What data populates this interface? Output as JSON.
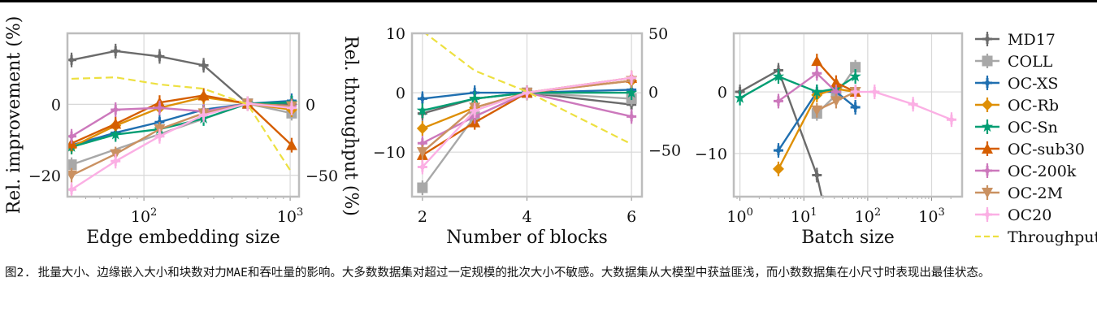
{
  "figure": {
    "caption": "图2. 批量大小、边缘嵌入大小和块数对力MAE和吞吐量的影响。大多数数据集对超过一定规模的批次大小不敏感。大数据集从大模型中获益匪浅，而小数数据集在小尺寸时表现出最佳状态。"
  },
  "colors": {
    "MD17": "#6b6b6b",
    "COLL": "#a8a8a8",
    "OC-XS": "#1f6fb0",
    "OC-Rb": "#de8f05",
    "OC-Sn": "#029e73",
    "OC-sub30": "#d55e00",
    "OC-200k": "#cc78bc",
    "OC-2M": "#ca9161",
    "OC20": "#fbafe4",
    "Throughput": "#ede040"
  },
  "markers": {
    "MD17": "plus",
    "COLL": "square",
    "OC-XS": "plus",
    "OC-Rb": "diamond",
    "OC-Sn": "star",
    "OC-sub30": "triangle-up",
    "OC-200k": "plus",
    "OC-2M": "triangle-down",
    "OC20": "plus"
  },
  "legend": {
    "position": "right",
    "entries": [
      "MD17",
      "COLL",
      "OC-XS",
      "OC-Rb",
      "OC-Sn",
      "OC-sub30",
      "OC-200k",
      "OC-2M",
      "OC20",
      "Throughput"
    ]
  },
  "chart_data": [
    {
      "type": "line",
      "xlabel": "Edge embedding size",
      "ylabel": "Rel. improvement (%)",
      "y2label": "",
      "xscale": "log",
      "xlim": [
        30,
        1150
      ],
      "ylim": [
        -26,
        20
      ],
      "y2lim": [
        -65,
        50
      ],
      "x_ticks": [
        100,
        1000
      ],
      "x_tick_labels": [
        "10^2",
        "10^3"
      ],
      "y_ticks": [
        0,
        -20
      ],
      "y_tick_labels": [
        "0",
        "−20"
      ],
      "y2_ticks": [
        0,
        -50
      ],
      "y2_tick_labels": [
        "0",
        "−50"
      ],
      "grid": true,
      "x": [
        32,
        64,
        128,
        256,
        512,
        1024
      ],
      "series": [
        {
          "name": "MD17",
          "values": [
            12.5,
            15,
            13.5,
            11,
            0.2,
            0
          ]
        },
        {
          "name": "COLL",
          "values": [
            -17,
            null,
            null,
            null,
            0.2,
            -2.5
          ]
        },
        {
          "name": "OC-XS",
          "values": [
            -11.5,
            -8,
            -5,
            -1.5,
            0.2,
            1
          ]
        },
        {
          "name": "OC-Rb",
          "values": [
            -12,
            -6,
            -1,
            2,
            0.2,
            -1.5
          ]
        },
        {
          "name": "OC-Sn",
          "values": [
            -12,
            -8.5,
            -7,
            -4,
            0.2,
            0.5
          ]
        },
        {
          "name": "OC-sub30",
          "values": [
            -11,
            -5.5,
            0.5,
            2.5,
            0.2,
            -11.5
          ]
        },
        {
          "name": "OC-200k",
          "values": [
            -9,
            -1.5,
            -1,
            -2,
            0.2,
            -0.5
          ]
        },
        {
          "name": "OC-2M",
          "values": [
            -20,
            -14,
            -7,
            -2.5,
            0.2,
            -0.5
          ]
        },
        {
          "name": "OC20",
          "values": [
            -24,
            -16,
            -9,
            -3,
            0.2,
            -1
          ]
        },
        {
          "name": "Throughput",
          "axis": "right",
          "values": [
            18,
            19,
            14,
            11,
            0,
            -48
          ]
        }
      ]
    },
    {
      "type": "line",
      "xlabel": "Number of blocks",
      "ylabel": "Rel. throughput (%)",
      "y2label": "",
      "xscale": "linear",
      "xlim": [
        1.8,
        6.2
      ],
      "ylim": [
        -17.5,
        10
      ],
      "y2lim": [
        -90,
        50
      ],
      "x_ticks": [
        2,
        4,
        6
      ],
      "x_tick_labels": [
        "2",
        "4",
        "6"
      ],
      "y_ticks": [
        10,
        0,
        -10
      ],
      "y_tick_labels": [
        "10",
        "0",
        "−10"
      ],
      "y2_ticks": [
        50,
        0,
        -50
      ],
      "y2_tick_labels": [
        "50",
        "0",
        "−50"
      ],
      "grid": true,
      "x": [
        2,
        3,
        4,
        6
      ],
      "series": [
        {
          "name": "MD17",
          "values": [
            -3.5,
            -1,
            0,
            -2
          ]
        },
        {
          "name": "COLL",
          "values": [
            -16,
            -4,
            0,
            -1
          ]
        },
        {
          "name": "OC-XS",
          "values": [
            -1,
            0,
            0,
            0.5
          ]
        },
        {
          "name": "OC-Rb",
          "values": [
            -6,
            -2.5,
            0,
            2
          ]
        },
        {
          "name": "OC-Sn",
          "values": [
            -3,
            -1,
            0,
            0
          ]
        },
        {
          "name": "OC-sub30",
          "values": [
            -10.5,
            -5,
            0,
            2.5
          ]
        },
        {
          "name": "OC-200k",
          "values": [
            -8.5,
            -4,
            0,
            -4
          ]
        },
        {
          "name": "OC-2M",
          "values": [
            -10,
            -2.5,
            0,
            2
          ]
        },
        {
          "name": "OC20",
          "values": [
            -12.5,
            -3,
            0,
            2.5
          ]
        },
        {
          "name": "Throughput",
          "axis": "right",
          "values": [
            52,
            18,
            0,
            -45
          ]
        }
      ]
    },
    {
      "type": "line",
      "xlabel": "Batch size",
      "ylabel": "",
      "xscale": "log",
      "xlim": [
        0.8,
        3000
      ],
      "ylim": [
        -17,
        9.5
      ],
      "x_ticks": [
        1,
        10,
        100,
        1000
      ],
      "x_tick_labels": [
        "10^0",
        "10^1",
        "10^2",
        "10^3"
      ],
      "y_ticks": [
        0,
        -10
      ],
      "y_tick_labels": [
        "0",
        "−10"
      ],
      "grid": true,
      "series": [
        {
          "name": "MD17",
          "x": [
            1,
            4,
            16,
            20
          ],
          "values": [
            0,
            3.5,
            -13.5,
            -18
          ]
        },
        {
          "name": "COLL",
          "x": [
            16,
            32,
            64
          ],
          "values": [
            -3.5,
            -0.5,
            4
          ]
        },
        {
          "name": "OC-XS",
          "x": [
            4,
            16,
            32,
            64
          ],
          "values": [
            -9.5,
            0,
            0,
            -2.5
          ]
        },
        {
          "name": "OC-Rb",
          "x": [
            4,
            16,
            32,
            64
          ],
          "values": [
            -12.5,
            -0.5,
            0.5,
            0
          ]
        },
        {
          "name": "OC-Sn",
          "x": [
            1,
            4,
            16,
            32,
            64
          ],
          "values": [
            -1,
            2.5,
            0,
            0.5,
            2.5
          ]
        },
        {
          "name": "OC-sub30",
          "x": [
            16,
            32,
            64
          ],
          "values": [
            5,
            1.5,
            0
          ]
        },
        {
          "name": "OC-200k",
          "x": [
            4,
            16,
            32
          ],
          "values": [
            -1.5,
            3,
            0
          ]
        },
        {
          "name": "OC-2M",
          "x": [
            16,
            32,
            64
          ],
          "values": [
            -3,
            -1.5,
            0
          ]
        },
        {
          "name": "OC20",
          "x": [
            64,
            128,
            512,
            2048
          ],
          "values": [
            0,
            0,
            -2,
            -4.5
          ]
        }
      ]
    }
  ]
}
